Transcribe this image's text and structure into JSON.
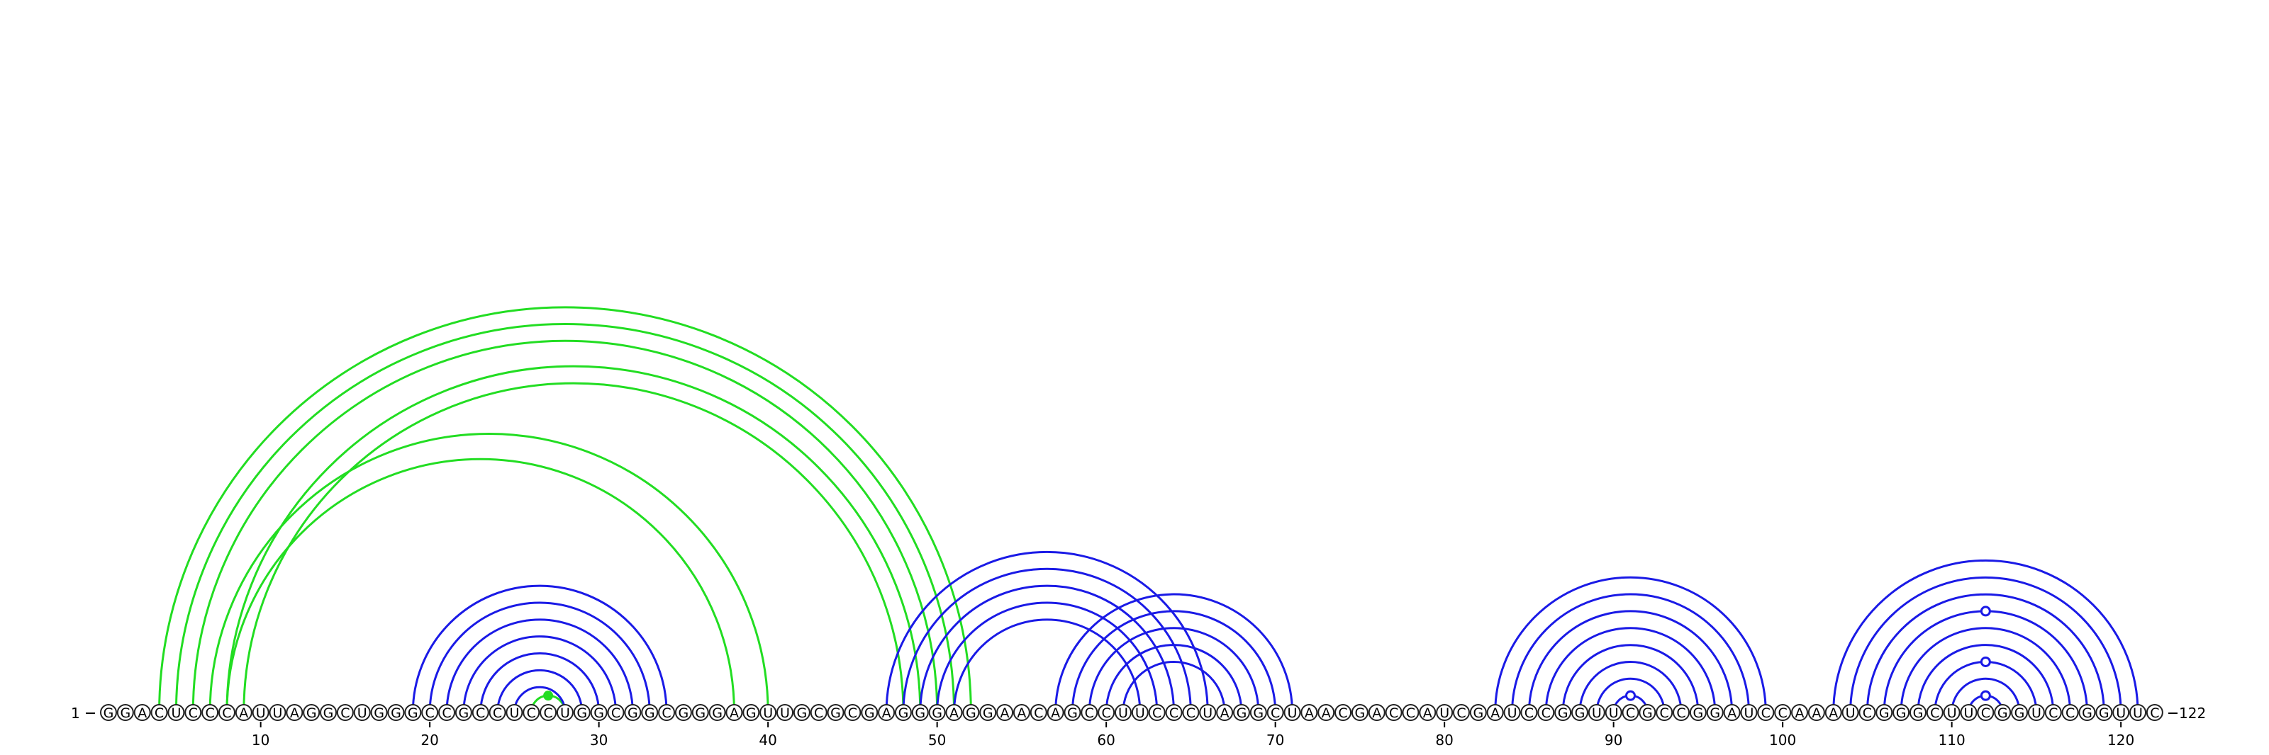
{
  "sequence": "GGACUCCCAUUAGGCUGGGCCGCCUCCUGGCGGCGGGAGUUGCGCGAGGGAGGAACAGCCUUCCCUAGGCUAACGACCAUCGAUCCGGUUCGCCGGAUCCAAAUCGGGCUUCGGUCCGGUUC",
  "start_label": "1",
  "end_label": "122",
  "ticks": [
    10,
    20,
    30,
    40,
    50,
    60,
    70,
    80,
    90,
    100,
    110,
    120
  ],
  "colors": {
    "blue": "#1a1ae6",
    "green": "#22dd22"
  },
  "pairs_blue": [
    [
      19,
      34
    ],
    [
      20,
      33
    ],
    [
      21,
      32
    ],
    [
      22,
      31
    ],
    [
      23,
      30
    ],
    [
      24,
      29
    ],
    [
      25,
      28
    ],
    [
      47,
      66
    ],
    [
      48,
      65
    ],
    [
      49,
      64
    ],
    [
      50,
      63
    ],
    [
      51,
      62
    ],
    [
      57,
      71
    ],
    [
      58,
      70
    ],
    [
      59,
      69
    ],
    [
      60,
      68
    ],
    [
      61,
      67
    ],
    [
      83,
      99
    ],
    [
      84,
      98
    ],
    [
      85,
      97
    ],
    [
      86,
      96
    ],
    [
      87,
      95
    ],
    [
      88,
      94
    ],
    [
      89,
      93
    ],
    [
      90,
      92
    ],
    [
      103,
      121
    ],
    [
      104,
      120
    ],
    [
      105,
      119
    ],
    [
      106,
      118
    ],
    [
      107,
      117
    ],
    [
      108,
      116
    ],
    [
      109,
      115
    ],
    [
      110,
      114
    ],
    [
      111,
      113
    ]
  ],
  "pairs_green": [
    [
      4,
      52
    ],
    [
      5,
      51
    ],
    [
      6,
      50
    ],
    [
      8,
      49
    ],
    [
      9,
      48
    ],
    [
      7,
      40
    ],
    [
      8,
      38
    ],
    [
      26,
      28
    ]
  ],
  "markers_hollow": [
    [
      91,
      1
    ],
    [
      112,
      1
    ],
    [
      112,
      3
    ],
    [
      112,
      6
    ]
  ],
  "markers_filled": [
    [
      27,
      1
    ]
  ]
}
